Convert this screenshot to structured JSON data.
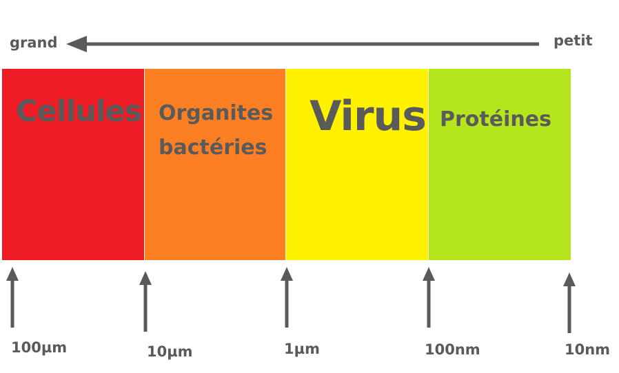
{
  "direction": {
    "left_label": "grand",
    "right_label": "petit"
  },
  "bands": [
    {
      "label_lines": [
        "Cellules"
      ],
      "color": "#ed1c24"
    },
    {
      "label_lines": [
        "Organites",
        "bactéries"
      ],
      "color": "#fd7f23"
    },
    {
      "label_lines": [
        "Virus"
      ],
      "color": "#fff200"
    },
    {
      "label_lines": [
        "Protéines"
      ],
      "color": "#b5e61d"
    }
  ],
  "scale_marks": [
    "100µm",
    "10µm",
    "1µm",
    "100nm",
    "10nm"
  ],
  "colors": {
    "text": "#5a5a5a",
    "arrow": "#5a5a5a"
  }
}
